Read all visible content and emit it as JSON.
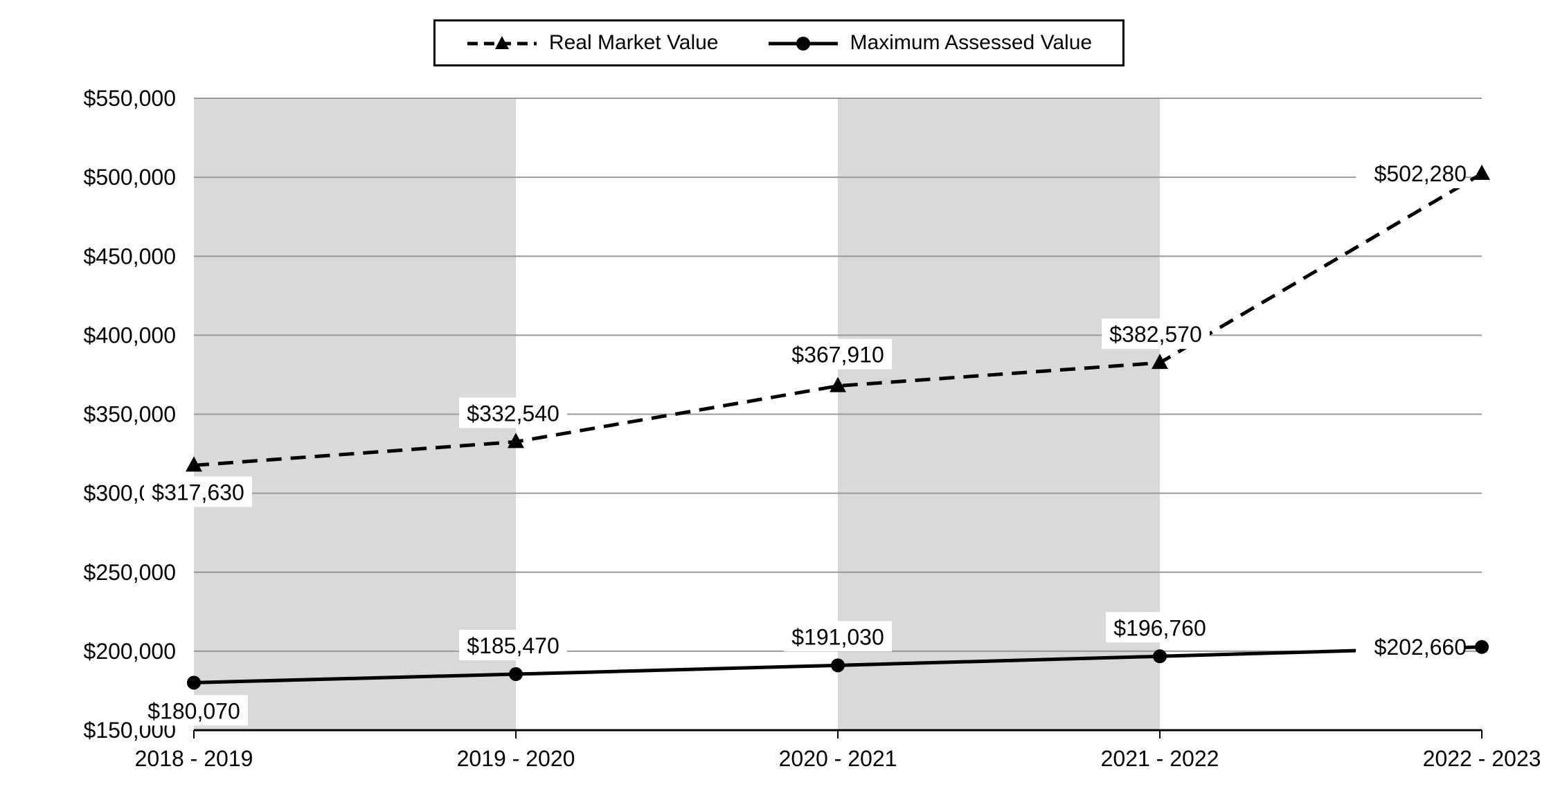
{
  "chart_data": {
    "type": "line",
    "title": "",
    "xlabel": "",
    "ylabel": "",
    "categories": [
      "2018 - 2019",
      "2019 - 2020",
      "2020 - 2021",
      "2021 - 2022",
      "2022 - 2023"
    ],
    "series": [
      {
        "name": "Real Market Value",
        "line_style": "dashed",
        "marker": "triangle",
        "values": [
          317630,
          332540,
          367910,
          382570,
          502280
        ],
        "labels": [
          "$317,630",
          "$332,540",
          "$367,910",
          "$382,570",
          "$502,280"
        ]
      },
      {
        "name": "Maximum Assessed Value",
        "line_style": "solid",
        "marker": "circle",
        "values": [
          180070,
          185470,
          191030,
          196760,
          202660
        ],
        "labels": [
          "$180,070",
          "$185,470",
          "$191,030",
          "$196,760",
          "$202,660"
        ]
      }
    ],
    "ylim": [
      150000,
      550000
    ],
    "y_ticks": [
      {
        "value": 150000,
        "label": "$150,000"
      },
      {
        "value": 200000,
        "label": "$200,000"
      },
      {
        "value": 250000,
        "label": "$250,000"
      },
      {
        "value": 300000,
        "label": "$300,000"
      },
      {
        "value": 350000,
        "label": "$350,000"
      },
      {
        "value": 400000,
        "label": "$400,000"
      },
      {
        "value": 450000,
        "label": "$450,000"
      },
      {
        "value": 500000,
        "label": "$500,000"
      },
      {
        "value": 550000,
        "label": "$550,000"
      }
    ],
    "grid": true,
    "legend_position": "top-center",
    "shaded_intervals": [
      [
        0,
        1
      ],
      [
        2,
        3
      ]
    ],
    "colors": {
      "line": "#000000",
      "grid": "#9a9a9a",
      "band": "#d9d9d9",
      "background": "#ffffff",
      "label_bg": "#ffffff",
      "text": "#000000"
    }
  }
}
